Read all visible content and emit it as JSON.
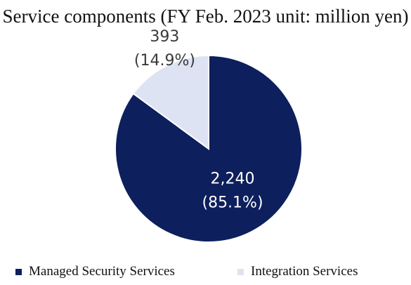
{
  "chart_data": {
    "type": "pie",
    "title": "Service components (FY Feb. 2023 unit: million yen)",
    "slices": [
      {
        "name": "Managed Security Services",
        "value": 2240,
        "value_label": "2,240",
        "percent_label": "(85.1%)",
        "color": "#0d1f5c"
      },
      {
        "name": "Integration Services",
        "value": 393,
        "value_label": "393",
        "percent_label": "(14.9%)",
        "color": "#dde3f2"
      }
    ],
    "start_angle_deg": 0,
    "direction": "clockwise",
    "legend_position": "bottom"
  }
}
